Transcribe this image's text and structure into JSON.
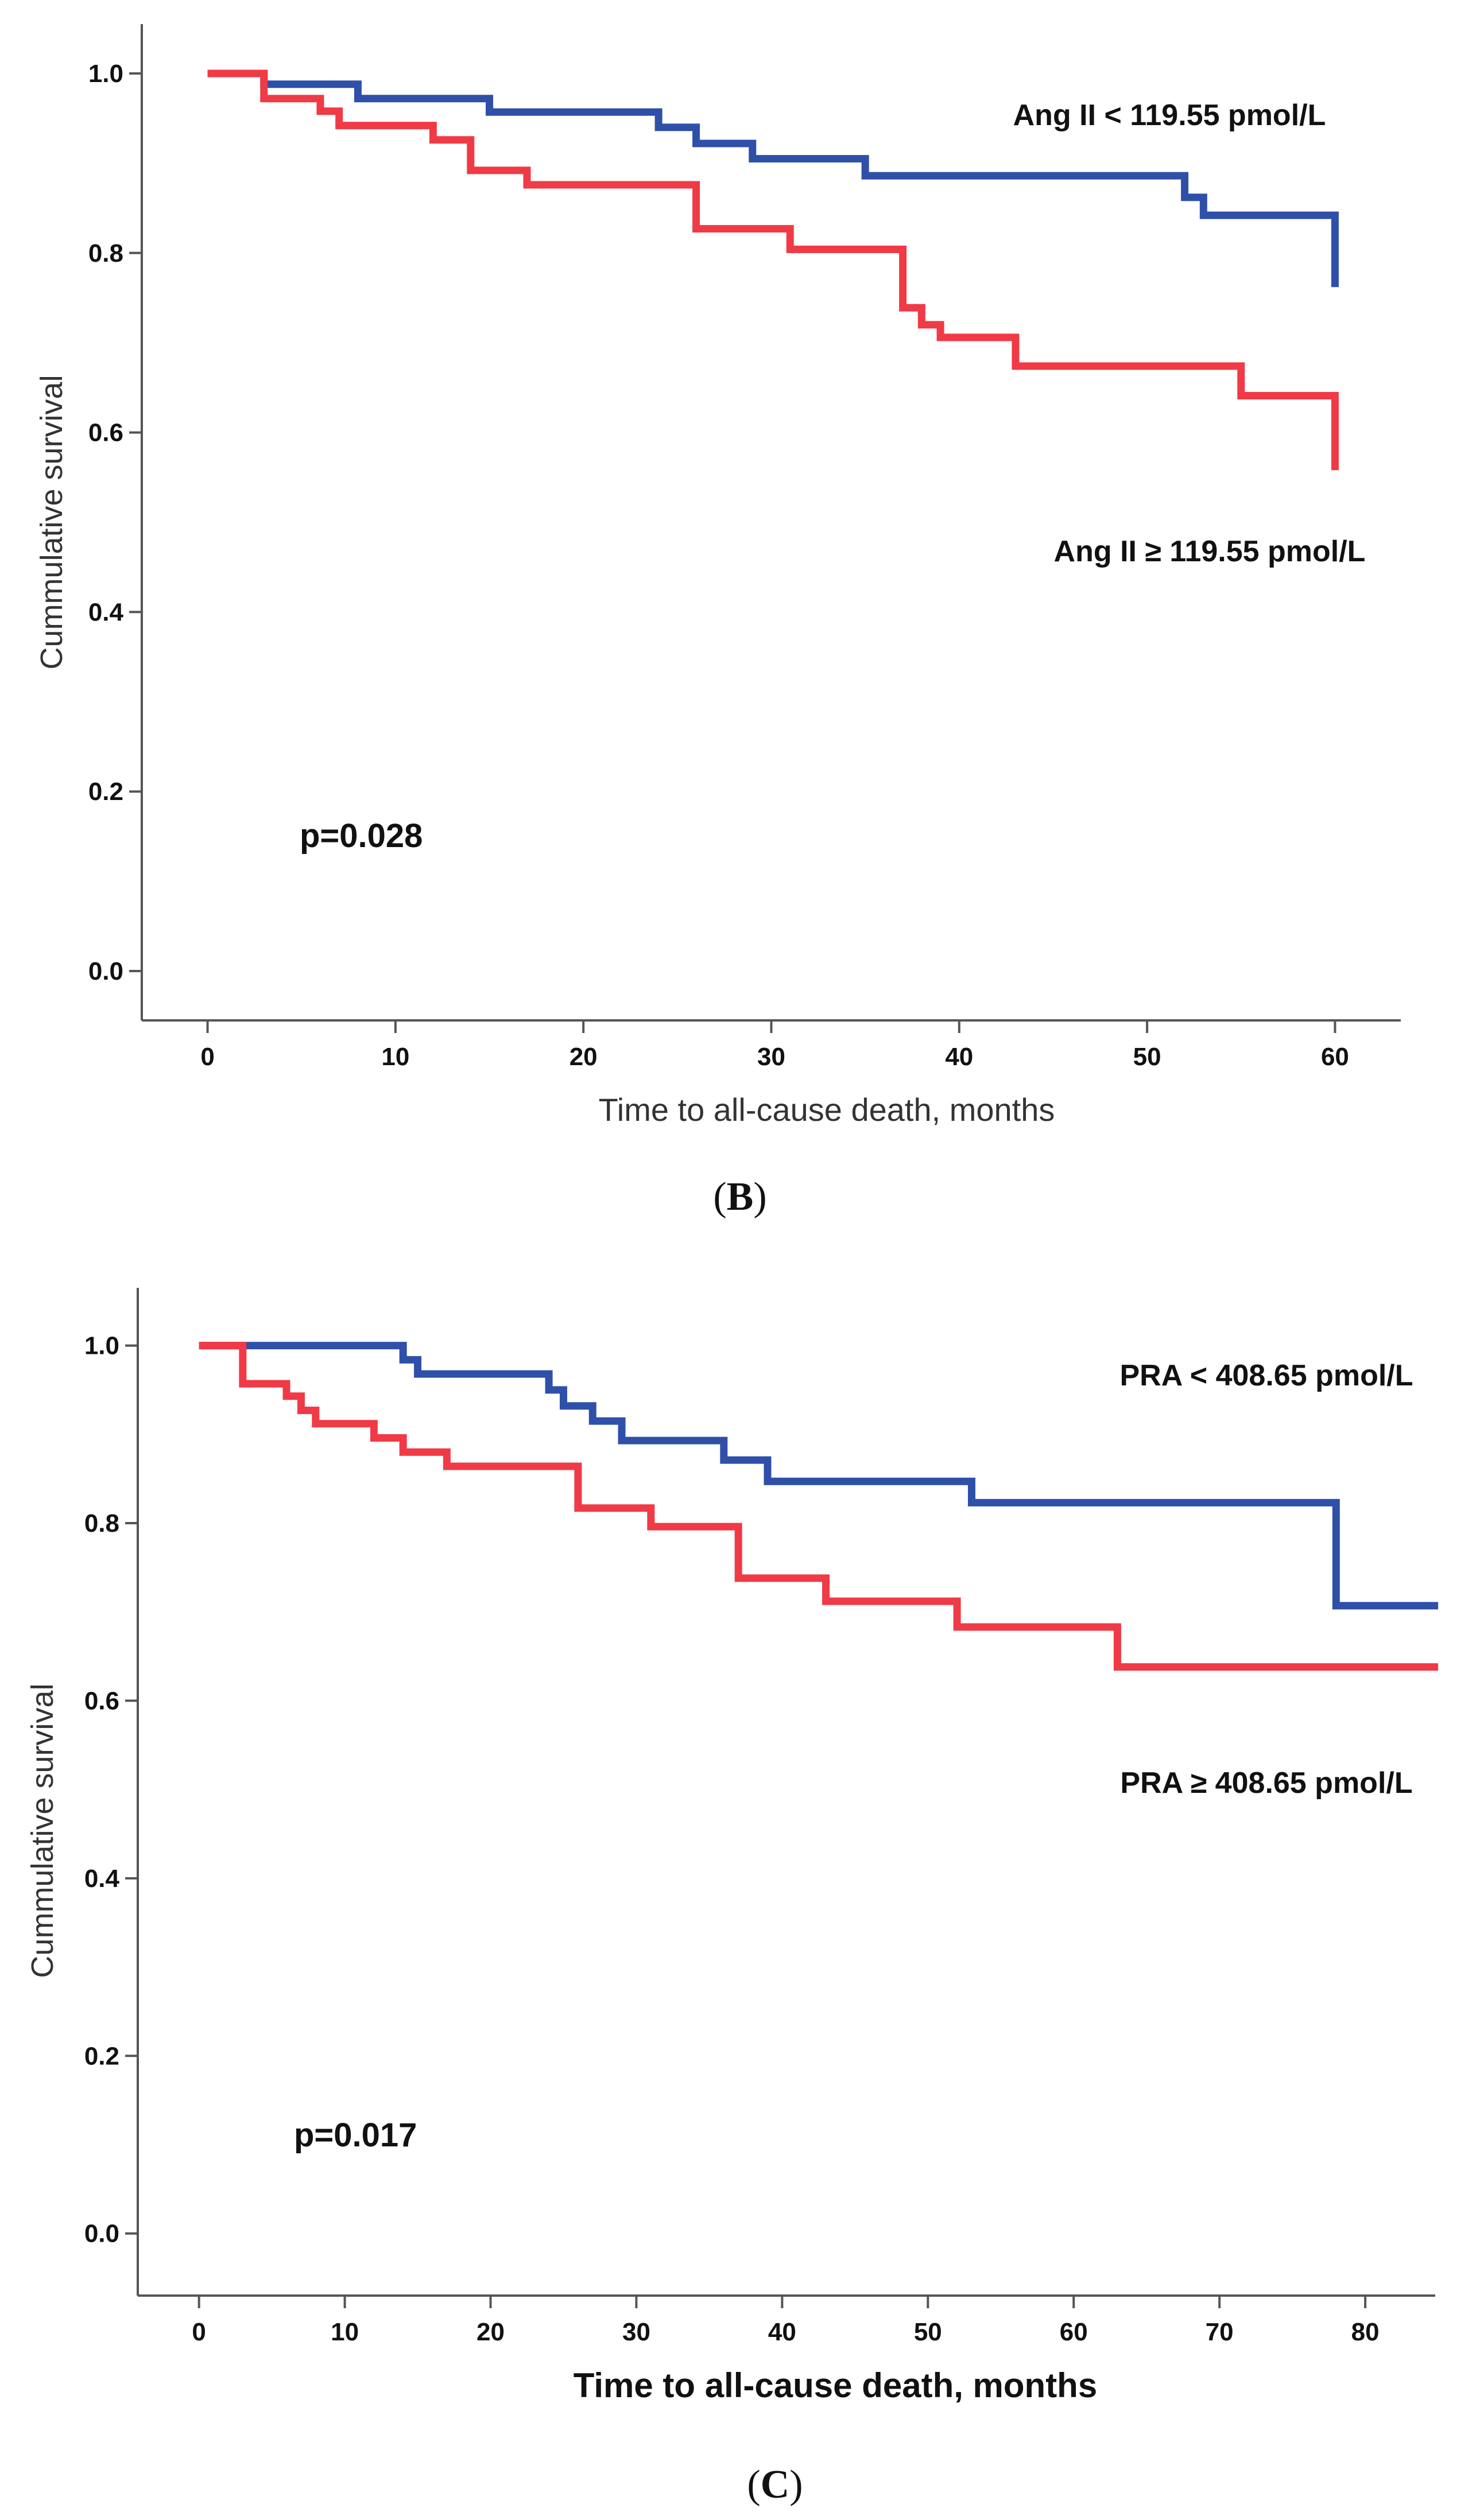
{
  "chart_data": [
    {
      "id": "B",
      "type": "line",
      "step": true,
      "panel_label": {
        "open": "(",
        "letter": "B",
        "close": ")"
      },
      "xlabel": "Time to all-cause death, months",
      "ylabel": "Cummulative survival",
      "xlim": [
        -3.5,
        63.5
      ],
      "ylim": [
        -0.055,
        1.055
      ],
      "xticks": [
        0,
        10,
        20,
        30,
        40,
        50,
        60
      ],
      "yticks": [
        0.0,
        0.2,
        0.4,
        0.6,
        0.8,
        1.0
      ],
      "ytick_labels": [
        "0.0",
        "0.2",
        "0.4",
        "0.6",
        "0.8",
        "1.0"
      ],
      "annotation": "p=0.028",
      "series": [
        {
          "name": "Ang II < 119.55 pmol/L",
          "color": "#2f50a8",
          "x": [
            0,
            3,
            8,
            15,
            24,
            26,
            29,
            35,
            52,
            53,
            60,
            60
          ],
          "y": [
            1.0,
            0.988,
            0.972,
            0.957,
            0.94,
            0.922,
            0.905,
            0.886,
            0.862,
            0.842,
            0.842,
            0.762
          ]
        },
        {
          "name": "Ang II ≥ 119.55 pmol/L",
          "color": "#f03a46",
          "x": [
            0,
            3,
            6,
            7,
            12,
            14,
            17,
            26,
            31,
            37,
            38,
            39,
            43,
            55,
            60,
            60
          ],
          "y": [
            1.0,
            0.972,
            0.958,
            0.942,
            0.926,
            0.892,
            0.876,
            0.827,
            0.804,
            0.739,
            0.72,
            0.706,
            0.674,
            0.641,
            0.641,
            0.558
          ]
        }
      ]
    },
    {
      "id": "C",
      "type": "line",
      "step": true,
      "panel_label": {
        "open": "(",
        "letter": "C",
        "close": ")"
      },
      "xlabel": "Time to all-cause death, months",
      "ylabel": "Cummulative survival",
      "xlim": [
        -4.2,
        84.8
      ],
      "ylim": [
        -0.07,
        1.065
      ],
      "xticks": [
        0,
        10,
        20,
        30,
        40,
        50,
        60,
        70,
        80
      ],
      "yticks": [
        0.0,
        0.2,
        0.4,
        0.6,
        0.8,
        1.0
      ],
      "ytick_labels": [
        "0.0",
        "0.2",
        "0.4",
        "0.6",
        "0.8",
        "1.0"
      ],
      "annotation": "p=0.017",
      "series": [
        {
          "name": "PRA < 408.65 pmol/L",
          "color": "#2f50a8",
          "x": [
            0,
            14,
            15,
            24,
            25,
            27,
            29,
            36,
            39,
            53,
            55,
            78,
            85
          ],
          "y": [
            1.0,
            0.984,
            0.968,
            0.95,
            0.932,
            0.915,
            0.893,
            0.871,
            0.847,
            0.823,
            0.823,
            0.707,
            0.707
          ]
        },
        {
          "name": "PRA ≥ 408.65 pmol/L",
          "color": "#f03a46",
          "x": [
            0,
            3,
            6,
            7,
            8,
            12,
            14,
            17,
            26,
            31,
            37,
            43,
            52,
            63,
            85
          ],
          "y": [
            1.0,
            0.957,
            0.943,
            0.927,
            0.912,
            0.896,
            0.88,
            0.864,
            0.817,
            0.796,
            0.738,
            0.712,
            0.683,
            0.638,
            0.638
          ]
        }
      ]
    }
  ]
}
